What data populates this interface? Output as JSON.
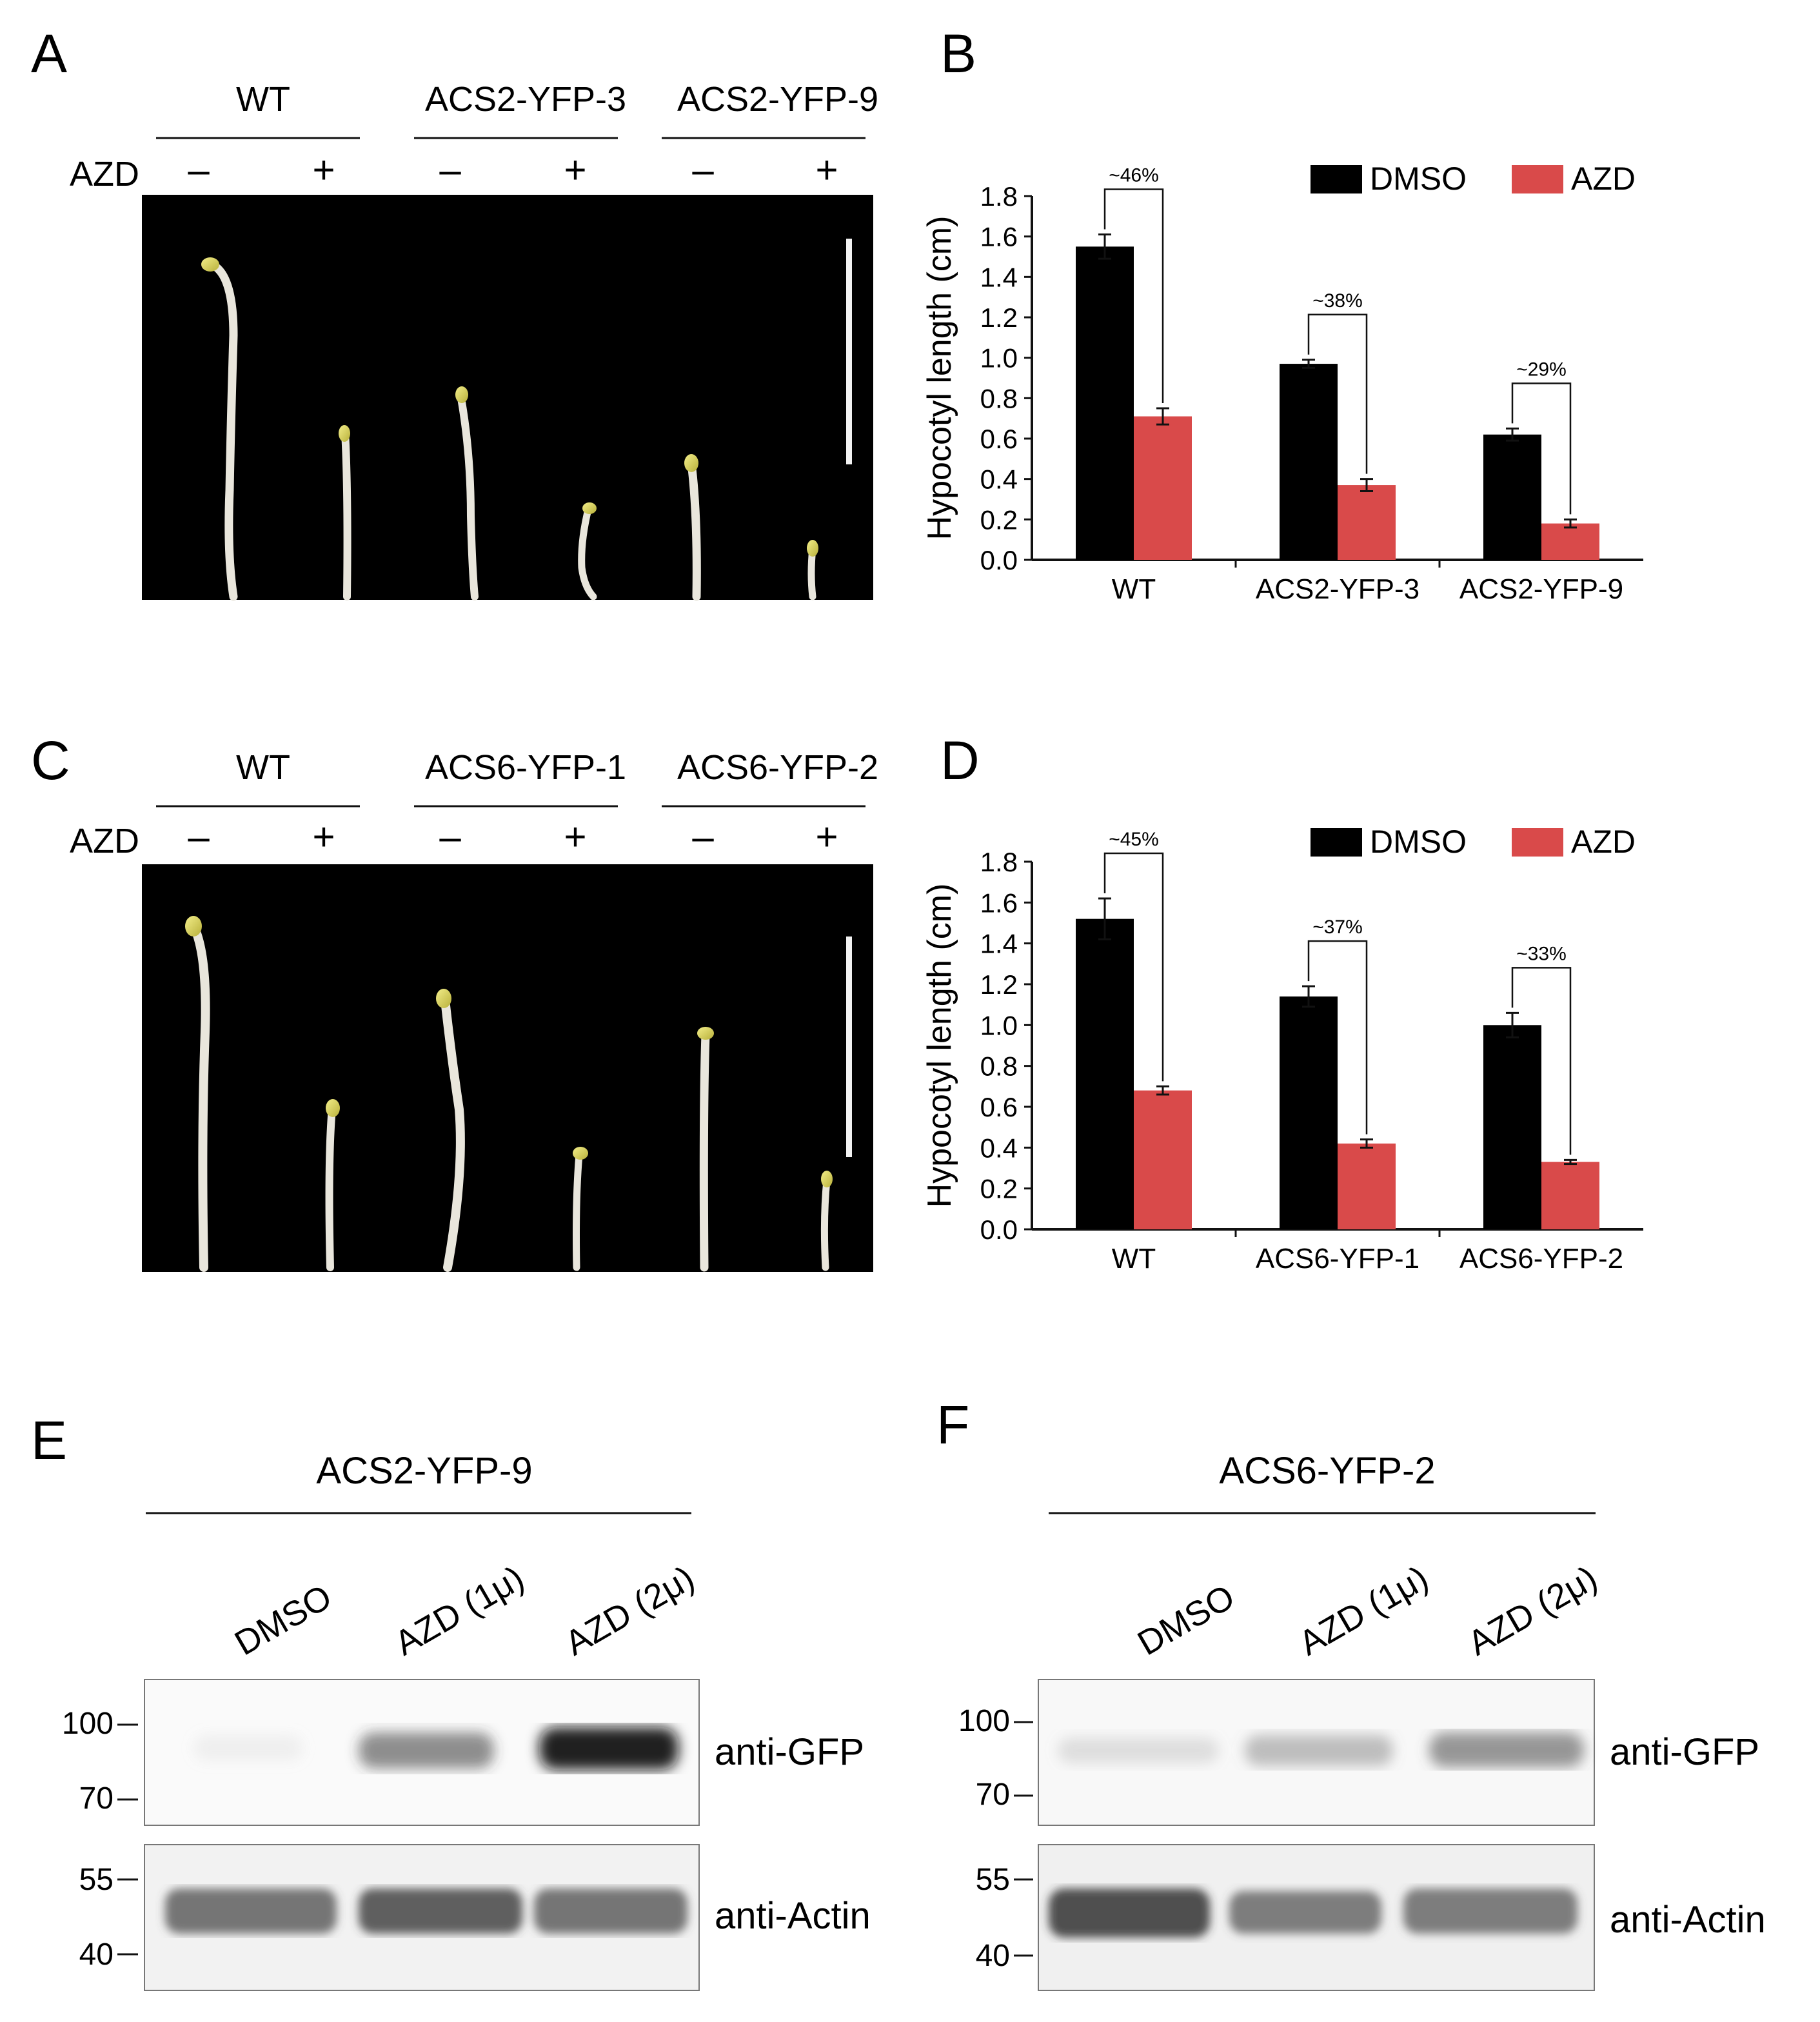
{
  "panelA": {
    "letter": "A",
    "genotypes": [
      "WT",
      "ACS2-YFP-3",
      "ACS2-YFP-9"
    ],
    "treatment_label": "AZD",
    "signs": [
      "–",
      "+",
      "–",
      "+",
      "–",
      "+"
    ]
  },
  "panelB": {
    "letter": "B",
    "chart_data": {
      "type": "bar",
      "categories": [
        "WT",
        "ACS2-YFP-3",
        "ACS2-YFP-9"
      ],
      "series": [
        {
          "name": "DMSO",
          "values": [
            1.55,
            0.97,
            0.62
          ],
          "errors": [
            0.06,
            0.02,
            0.03
          ],
          "color": "#000000"
        },
        {
          "name": "AZD",
          "values": [
            0.71,
            0.37,
            0.18
          ],
          "errors": [
            0.04,
            0.03,
            0.02
          ],
          "color": "#d94a4a"
        }
      ],
      "annotations": [
        "~46%",
        "~38%",
        "~29%"
      ],
      "ylabel": "Hypocotyl length (cm)",
      "ylim": [
        0,
        1.8
      ],
      "yticks": [
        "0.0",
        "0.2",
        "0.4",
        "0.6",
        "0.8",
        "1.0",
        "1.2",
        "1.4",
        "1.6",
        "1.8"
      ],
      "legend": "top-right"
    }
  },
  "panelC": {
    "letter": "C",
    "genotypes": [
      "WT",
      "ACS6-YFP-1",
      "ACS6-YFP-2"
    ],
    "treatment_label": "AZD",
    "signs": [
      "–",
      "+",
      "–",
      "+",
      "–",
      "+"
    ]
  },
  "panelD": {
    "letter": "D",
    "chart_data": {
      "type": "bar",
      "categories": [
        "WT",
        "ACS6-YFP-1",
        "ACS6-YFP-2"
      ],
      "series": [
        {
          "name": "DMSO",
          "values": [
            1.52,
            1.14,
            1.0
          ],
          "errors": [
            0.1,
            0.05,
            0.06
          ],
          "color": "#000000"
        },
        {
          "name": "AZD",
          "values": [
            0.68,
            0.42,
            0.33
          ],
          "errors": [
            0.02,
            0.02,
            0.01
          ],
          "color": "#d94a4a"
        }
      ],
      "annotations": [
        "~45%",
        "~37%",
        "~33%"
      ],
      "ylabel": "Hypocotyl length (cm)",
      "ylim": [
        0,
        1.8
      ],
      "yticks": [
        "0.0",
        "0.2",
        "0.4",
        "0.6",
        "0.8",
        "1.0",
        "1.2",
        "1.4",
        "1.6",
        "1.8"
      ],
      "legend": "top-right"
    }
  },
  "panelE": {
    "letter": "E",
    "title": "ACS2-YFP-9",
    "lanes": [
      "DMSO",
      "AZD (1μ)",
      "AZD (2μ)"
    ],
    "gfp_label": "anti-GFP",
    "actin_label": "anti-Actin",
    "gfp_markers": [
      "100",
      "70"
    ],
    "actin_markers": [
      "55",
      "40"
    ]
  },
  "panelF": {
    "letter": "F",
    "title": "ACS6-YFP-2",
    "lanes": [
      "DMSO",
      "AZD (1μ)",
      "AZD (2μ)"
    ],
    "gfp_label": "anti-GFP",
    "actin_label": "anti-Actin",
    "gfp_markers": [
      "100",
      "70"
    ],
    "actin_markers": [
      "55",
      "40"
    ]
  }
}
